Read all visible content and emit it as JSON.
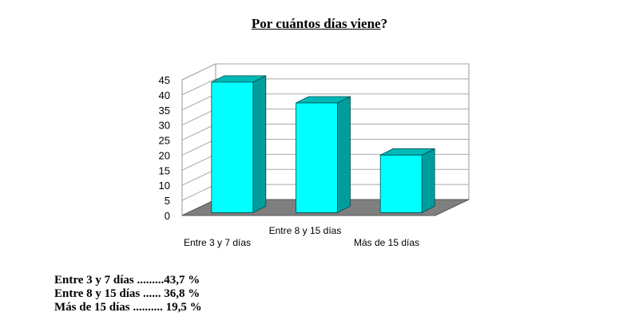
{
  "title": {
    "main": "Por cuántos días viene",
    "suffix": "?"
  },
  "chart_data": {
    "type": "bar",
    "title": "Por cuántos días viene?",
    "categories": [
      "Entre 3 y 7 días",
      "Entre 8 y 15 días",
      "Más de 15 días"
    ],
    "values": [
      43.7,
      36.8,
      19.5
    ],
    "ylim": [
      0,
      45
    ],
    "yticks": [
      0,
      5,
      10,
      15,
      20,
      25,
      30,
      35,
      40,
      45
    ],
    "grid": true,
    "legend": "none",
    "colors": {
      "bar_front": "#00ffff",
      "bar_side": "#009d9d",
      "bar_top": "#00b8b8",
      "floor": "#7f7f7f"
    }
  },
  "summary": [
    "Entre 3 y 7 días .........43,7 %",
    "Entre 8 y 15 días ...... 36,8 %",
    "Más de 15 días .......... 19,5 %"
  ]
}
